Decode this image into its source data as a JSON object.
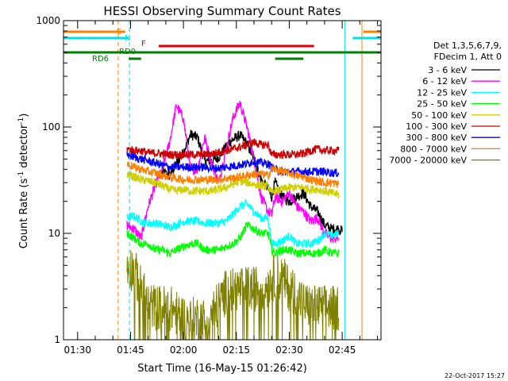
{
  "chart_data": {
    "type": "line",
    "title": "HESSI Observing Summary Count Rates",
    "xlabel": "Start Time (16-May-15 01:26:42)",
    "ylabel_main": "Count Rate (s",
    "ylabel_sup1": "-1",
    "ylabel_mid": " detector",
    "ylabel_sup2": "-1",
    "ylabel_end": ")",
    "y_scale": "log",
    "ylim": [
      1,
      1000
    ],
    "xlim_minutes": [
      86,
      176
    ],
    "x_ticks": [
      {
        "minute": 90,
        "label": "01:30"
      },
      {
        "minute": 105,
        "label": "01:45"
      },
      {
        "minute": 120,
        "label": "02:00"
      },
      {
        "minute": 135,
        "label": "02:15"
      },
      {
        "minute": 150,
        "label": "02:30"
      },
      {
        "minute": 165,
        "label": "02:45"
      },
      {
        "minute": 180,
        "label": "03:00"
      }
    ],
    "y_ticks": [
      {
        "value": 1,
        "label": "1"
      },
      {
        "value": 10,
        "label": "10"
      },
      {
        "value": 100,
        "label": "100"
      },
      {
        "value": 1000,
        "label": "1000"
      }
    ],
    "legend": {
      "placement": "right",
      "header1": "Det 1,3,5,6,7,9,",
      "header2": "FDecim 1, Att 0"
    },
    "flags": [
      {
        "name": "S",
        "color": "#ff7f00",
        "segments": [
          [
            86,
            103.5
          ],
          [
            171,
            176
          ]
        ]
      },
      {
        "name": "N",
        "color": "#00e0e0",
        "segments": [
          [
            86,
            104.5
          ],
          [
            168,
            176
          ]
        ]
      },
      {
        "name": "F",
        "color": "#e00000",
        "segments": [
          [
            113,
            157
          ]
        ]
      },
      {
        "name": "RD0",
        "color": "#008000",
        "segments": [
          [
            86,
            176
          ]
        ]
      },
      {
        "name": "RD6",
        "color": "#008000",
        "segments": [
          [
            104.5,
            108
          ],
          [
            146,
            154
          ]
        ]
      }
    ],
    "vertical_markers": [
      {
        "minute": 101.5,
        "color": "#ff7f00",
        "style": "dashed"
      },
      {
        "minute": 104.7,
        "color": "#00e0e0",
        "style": "dashed"
      },
      {
        "minute": 165.8,
        "color": "#00e0e0",
        "style": "solid"
      },
      {
        "minute": 170.6,
        "color": "#ff7f00",
        "style": "solid"
      },
      {
        "minute": 182.3,
        "color": "#00e0e0",
        "style": "dashed"
      }
    ],
    "series": [
      {
        "name": "3 - 6 keV",
        "color": "#000000",
        "points": [
          [
            114,
            38
          ],
          [
            116,
            35
          ],
          [
            118,
            45
          ],
          [
            120,
            58
          ],
          [
            122,
            85
          ],
          [
            124,
            80
          ],
          [
            126,
            48
          ],
          [
            128,
            48
          ],
          [
            130,
            52
          ],
          [
            133,
            72
          ],
          [
            136,
            84
          ],
          [
            138,
            70
          ],
          [
            140,
            50
          ],
          [
            142,
            32
          ],
          [
            144,
            26
          ],
          [
            145,
            22
          ],
          [
            146,
            30
          ],
          [
            148,
            22
          ],
          [
            150,
            20
          ],
          [
            152,
            22
          ],
          [
            154,
            24
          ],
          [
            156,
            18
          ],
          [
            158,
            16
          ],
          [
            160,
            12
          ],
          [
            162,
            11
          ],
          [
            164,
            11
          ],
          [
            165,
            10.5
          ]
        ]
      },
      {
        "name": "6 - 12 keV",
        "color": "#ff00ff",
        "points": [
          [
            104,
            12
          ],
          [
            106,
            11
          ],
          [
            108,
            9
          ],
          [
            110,
            18
          ],
          [
            112,
            28
          ],
          [
            114,
            40
          ],
          [
            116,
            70
          ],
          [
            118,
            160
          ],
          [
            120,
            120
          ],
          [
            122,
            40
          ],
          [
            124,
            40
          ],
          [
            126,
            80
          ],
          [
            128,
            45
          ],
          [
            130,
            30
          ],
          [
            132,
            60
          ],
          [
            134,
            120
          ],
          [
            136,
            170
          ],
          [
            138,
            100
          ],
          [
            140,
            50
          ],
          [
            142,
            22
          ],
          [
            144,
            16
          ],
          [
            145,
            15
          ],
          [
            146,
            22
          ],
          [
            148,
            20
          ],
          [
            150,
            24
          ],
          [
            152,
            18
          ],
          [
            154,
            16
          ],
          [
            156,
            13
          ],
          [
            158,
            14
          ],
          [
            160,
            10
          ],
          [
            162,
            9
          ],
          [
            164,
            9
          ]
        ]
      },
      {
        "name": "12 - 25 keV",
        "color": "#00ffff",
        "points": [
          [
            104,
            14
          ],
          [
            106,
            14.5
          ],
          [
            108,
            13
          ],
          [
            110,
            12.5
          ],
          [
            112,
            12.5
          ],
          [
            114,
            12
          ],
          [
            116,
            11.5
          ],
          [
            118,
            12
          ],
          [
            120,
            13
          ],
          [
            122,
            13
          ],
          [
            124,
            13
          ],
          [
            126,
            12.5
          ],
          [
            128,
            12.5
          ],
          [
            130,
            12.5
          ],
          [
            132,
            13
          ],
          [
            134,
            15
          ],
          [
            136,
            18
          ],
          [
            138,
            19
          ],
          [
            140,
            16
          ],
          [
            142,
            14
          ],
          [
            144,
            14
          ],
          [
            145,
            8
          ],
          [
            146,
            8
          ],
          [
            148,
            8.5
          ],
          [
            150,
            9.5
          ],
          [
            152,
            8
          ],
          [
            154,
            8
          ],
          [
            156,
            8
          ],
          [
            158,
            8.5
          ],
          [
            160,
            10
          ],
          [
            162,
            9.5
          ],
          [
            164,
            10
          ]
        ]
      },
      {
        "name": "25 - 50 keV",
        "color": "#00ff00",
        "points": [
          [
            104,
            10
          ],
          [
            106,
            9
          ],
          [
            108,
            8
          ],
          [
            110,
            8
          ],
          [
            112,
            7
          ],
          [
            114,
            7
          ],
          [
            116,
            6.5
          ],
          [
            118,
            7
          ],
          [
            120,
            7.5
          ],
          [
            122,
            8
          ],
          [
            124,
            8
          ],
          [
            126,
            7
          ],
          [
            128,
            7
          ],
          [
            130,
            7
          ],
          [
            132,
            7.5
          ],
          [
            134,
            8
          ],
          [
            136,
            9
          ],
          [
            138,
            12
          ],
          [
            140,
            11
          ],
          [
            142,
            10
          ],
          [
            144,
            10
          ],
          [
            145,
            7
          ],
          [
            146,
            6.5
          ],
          [
            148,
            7
          ],
          [
            150,
            7
          ],
          [
            152,
            6.5
          ],
          [
            154,
            6.5
          ],
          [
            156,
            6.5
          ],
          [
            158,
            6.5
          ],
          [
            160,
            7
          ],
          [
            162,
            6.5
          ],
          [
            164,
            6.5
          ]
        ]
      },
      {
        "name": "50 - 100 keV",
        "color": "#d0d000",
        "points": [
          [
            104,
            36
          ],
          [
            106,
            34
          ],
          [
            108,
            32
          ],
          [
            110,
            31
          ],
          [
            112,
            30
          ],
          [
            114,
            28
          ],
          [
            116,
            26
          ],
          [
            118,
            25
          ],
          [
            120,
            26
          ],
          [
            122,
            25
          ],
          [
            124,
            25
          ],
          [
            126,
            25
          ],
          [
            128,
            25
          ],
          [
            130,
            26
          ],
          [
            132,
            27
          ],
          [
            134,
            29
          ],
          [
            136,
            31
          ],
          [
            138,
            30
          ],
          [
            140,
            29
          ],
          [
            142,
            28
          ],
          [
            144,
            28
          ],
          [
            145,
            24
          ],
          [
            146,
            25
          ],
          [
            148,
            26
          ],
          [
            150,
            27
          ],
          [
            152,
            27
          ],
          [
            154,
            27
          ],
          [
            156,
            26
          ],
          [
            158,
            26
          ],
          [
            160,
            25
          ],
          [
            162,
            24
          ],
          [
            164,
            23
          ]
        ]
      },
      {
        "name": "100 - 300 keV",
        "color": "#cc0000",
        "points": [
          [
            104,
            62
          ],
          [
            106,
            60
          ],
          [
            108,
            60
          ],
          [
            110,
            57
          ],
          [
            112,
            57
          ],
          [
            114,
            56
          ],
          [
            116,
            55
          ],
          [
            118,
            55
          ],
          [
            120,
            55
          ],
          [
            122,
            55
          ],
          [
            124,
            55
          ],
          [
            126,
            55
          ],
          [
            128,
            56
          ],
          [
            130,
            58
          ],
          [
            132,
            60
          ],
          [
            134,
            62
          ],
          [
            136,
            65
          ],
          [
            138,
            68
          ],
          [
            140,
            72
          ],
          [
            142,
            68
          ],
          [
            144,
            68
          ],
          [
            145,
            55
          ],
          [
            146,
            55
          ],
          [
            148,
            55
          ],
          [
            150,
            55
          ],
          [
            152,
            55
          ],
          [
            154,
            56
          ],
          [
            156,
            60
          ],
          [
            158,
            62
          ],
          [
            160,
            60
          ],
          [
            162,
            60
          ],
          [
            164,
            60
          ]
        ]
      },
      {
        "name": "300 - 800 keV",
        "color": "#0000ff",
        "points": [
          [
            104,
            55
          ],
          [
            106,
            52
          ],
          [
            108,
            50
          ],
          [
            110,
            48
          ],
          [
            112,
            46
          ],
          [
            114,
            44
          ],
          [
            116,
            42
          ],
          [
            118,
            42
          ],
          [
            120,
            42
          ],
          [
            122,
            42
          ],
          [
            124,
            42
          ],
          [
            126,
            42
          ],
          [
            128,
            41
          ],
          [
            130,
            41
          ],
          [
            132,
            42
          ],
          [
            134,
            43
          ],
          [
            136,
            44
          ],
          [
            138,
            45
          ],
          [
            140,
            48
          ],
          [
            142,
            46
          ],
          [
            144,
            45
          ],
          [
            145,
            42
          ],
          [
            146,
            40
          ],
          [
            148,
            38
          ],
          [
            150,
            38
          ],
          [
            152,
            38
          ],
          [
            154,
            38
          ],
          [
            156,
            38
          ],
          [
            158,
            38
          ],
          [
            160,
            38
          ],
          [
            162,
            37
          ],
          [
            164,
            37
          ]
        ]
      },
      {
        "name": "800 - 7000 keV",
        "color": "#ff7f00",
        "points": [
          [
            104,
            45
          ],
          [
            106,
            42
          ],
          [
            108,
            40
          ],
          [
            110,
            38
          ],
          [
            112,
            37
          ],
          [
            114,
            35
          ],
          [
            116,
            34
          ],
          [
            118,
            33
          ],
          [
            120,
            32
          ],
          [
            122,
            32
          ],
          [
            124,
            32
          ],
          [
            126,
            32
          ],
          [
            128,
            32
          ],
          [
            130,
            32
          ],
          [
            132,
            33
          ],
          [
            134,
            33
          ],
          [
            136,
            34
          ],
          [
            138,
            35
          ],
          [
            140,
            36
          ],
          [
            142,
            36
          ],
          [
            144,
            35
          ],
          [
            145,
            40
          ],
          [
            146,
            40
          ],
          [
            148,
            38
          ],
          [
            150,
            37
          ],
          [
            152,
            35
          ],
          [
            154,
            34
          ],
          [
            156,
            32
          ],
          [
            158,
            31
          ],
          [
            160,
            30
          ],
          [
            162,
            30
          ],
          [
            164,
            29
          ]
        ]
      },
      {
        "name": "7000 - 20000 keV",
        "color": "#808000",
        "points": [
          [
            104,
            5
          ],
          [
            106,
            4.5
          ],
          [
            108,
            3
          ],
          [
            110,
            2.2
          ],
          [
            112,
            2
          ],
          [
            114,
            2
          ],
          [
            116,
            2
          ],
          [
            118,
            1.8
          ],
          [
            120,
            1.6
          ],
          [
            122,
            1.5
          ],
          [
            124,
            1.6
          ],
          [
            126,
            1.5
          ],
          [
            128,
            1.8
          ],
          [
            130,
            2.2
          ],
          [
            132,
            2.8
          ],
          [
            134,
            3
          ],
          [
            136,
            3
          ],
          [
            138,
            3
          ],
          [
            140,
            3
          ],
          [
            142,
            3.2
          ],
          [
            144,
            3.2
          ],
          [
            145,
            3.8
          ],
          [
            146,
            3.8
          ],
          [
            148,
            3.8
          ],
          [
            150,
            3
          ],
          [
            152,
            2.8
          ],
          [
            154,
            2.2
          ],
          [
            156,
            2
          ],
          [
            158,
            2
          ],
          [
            160,
            2
          ],
          [
            162,
            2
          ],
          [
            164,
            2
          ]
        ]
      }
    ],
    "footer_date": "22-Oct-2017 15:27"
  }
}
